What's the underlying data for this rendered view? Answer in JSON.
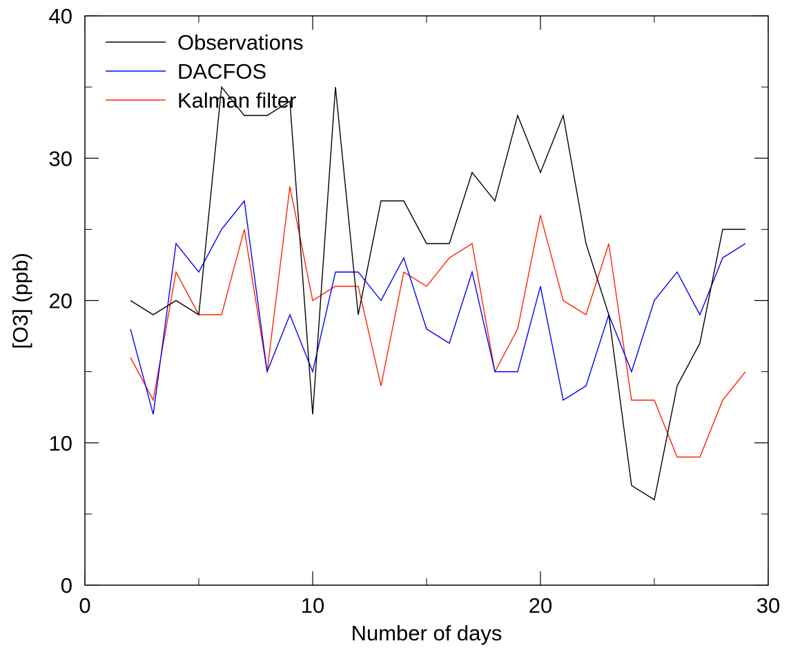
{
  "chart_data": {
    "type": "line",
    "title": "",
    "xlabel": "Number of days",
    "ylabel": "[O3] (ppb)",
    "xlim": [
      0,
      30
    ],
    "ylim": [
      0,
      40
    ],
    "x_ticks": [
      0,
      10,
      20,
      30
    ],
    "y_ticks": [
      0,
      10,
      20,
      30,
      40
    ],
    "grid": false,
    "legend_position": "top-left",
    "x": [
      2,
      3,
      4,
      5,
      6,
      7,
      8,
      9,
      10,
      11,
      12,
      13,
      14,
      15,
      16,
      17,
      18,
      19,
      20,
      21,
      22,
      23,
      24,
      25,
      26,
      27,
      28,
      29
    ],
    "series": [
      {
        "name": "Observations",
        "color": "#000000",
        "values": [
          20,
          19,
          20,
          19,
          35,
          33,
          33,
          34,
          12,
          35,
          19,
          27,
          27,
          24,
          24,
          29,
          27,
          33,
          29,
          33,
          24,
          19,
          7,
          6,
          14,
          17,
          25,
          25
        ]
      },
      {
        "name": "DACFOS",
        "color": "#0000ff",
        "values": [
          18,
          12,
          24,
          22,
          25,
          27,
          15,
          19,
          15,
          22,
          22,
          20,
          23,
          18,
          17,
          22,
          15,
          15,
          21,
          13,
          14,
          19,
          15,
          20,
          22,
          19,
          23,
          24
        ]
      },
      {
        "name": "Kalman filter",
        "color": "#ff2200",
        "values": [
          16,
          13,
          22,
          19,
          19,
          25,
          15,
          28,
          20,
          21,
          21,
          14,
          22,
          21,
          23,
          24,
          15,
          18,
          26,
          20,
          19,
          24,
          13,
          13,
          9,
          9,
          13,
          15
        ]
      }
    ]
  }
}
